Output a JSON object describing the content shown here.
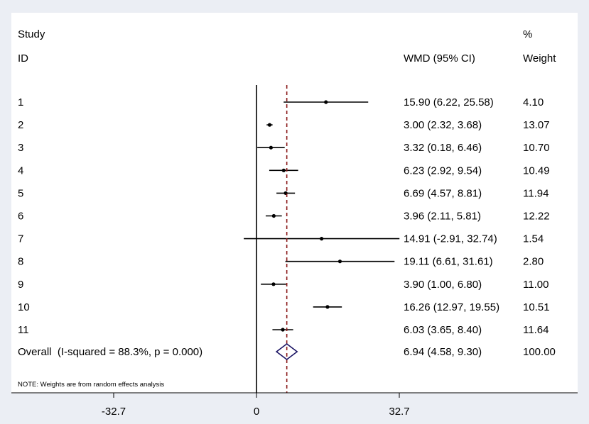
{
  "chart_data": {
    "type": "forest",
    "header": {
      "study_line1": "Study",
      "study_line2": "ID",
      "effect_label": "WMD (95% CI)",
      "weight_line1": "%",
      "weight_line2": "Weight"
    },
    "studies": [
      {
        "id": "1",
        "est": 15.9,
        "lo": 6.22,
        "hi": 25.58,
        "ci_text": "15.90 (6.22, 25.58)",
        "weight": "4.10"
      },
      {
        "id": "2",
        "est": 3.0,
        "lo": 2.32,
        "hi": 3.68,
        "ci_text": "3.00 (2.32, 3.68)",
        "weight": "13.07"
      },
      {
        "id": "3",
        "est": 3.32,
        "lo": 0.18,
        "hi": 6.46,
        "ci_text": "3.32 (0.18, 6.46)",
        "weight": "10.70"
      },
      {
        "id": "4",
        "est": 6.23,
        "lo": 2.92,
        "hi": 9.54,
        "ci_text": "6.23 (2.92, 9.54)",
        "weight": "10.49"
      },
      {
        "id": "5",
        "est": 6.69,
        "lo": 4.57,
        "hi": 8.81,
        "ci_text": "6.69 (4.57, 8.81)",
        "weight": "11.94"
      },
      {
        "id": "6",
        "est": 3.96,
        "lo": 2.11,
        "hi": 5.81,
        "ci_text": "3.96 (2.11, 5.81)",
        "weight": "12.22"
      },
      {
        "id": "7",
        "est": 14.91,
        "lo": -2.91,
        "hi": 32.74,
        "ci_text": "14.91 (-2.91, 32.74)",
        "weight": "1.54"
      },
      {
        "id": "8",
        "est": 19.11,
        "lo": 6.61,
        "hi": 31.61,
        "ci_text": "19.11 (6.61, 31.61)",
        "weight": "2.80"
      },
      {
        "id": "9",
        "est": 3.9,
        "lo": 1.0,
        "hi": 6.8,
        "ci_text": "3.90 (1.00, 6.80)",
        "weight": "11.00"
      },
      {
        "id": "10",
        "est": 16.26,
        "lo": 12.97,
        "hi": 19.55,
        "ci_text": "16.26 (12.97, 19.55)",
        "weight": "10.51"
      },
      {
        "id": "11",
        "est": 6.03,
        "lo": 3.65,
        "hi": 8.4,
        "ci_text": "6.03 (3.65, 8.40)",
        "weight": "11.64"
      }
    ],
    "overall": {
      "label": "Overall  (I-squared = 88.3%, p = 0.000)",
      "est": 6.94,
      "lo": 4.58,
      "hi": 9.3,
      "ci_text": "6.94 (4.58, 9.30)",
      "weight": "100.00"
    },
    "note": "NOTE: Weights are from random effects analysis",
    "x_ticks": [
      -32.7,
      0,
      32.7
    ],
    "x_tick_labels": [
      "-32.7",
      "0",
      "32.7"
    ],
    "null_value": 0,
    "colors": {
      "outer_background": "#ebeef4",
      "panel": "#ffffff",
      "null_line": "#000000",
      "overall_line": "#8b1a1a",
      "diamond": "#1b1464",
      "ci_line": "#000000"
    }
  }
}
